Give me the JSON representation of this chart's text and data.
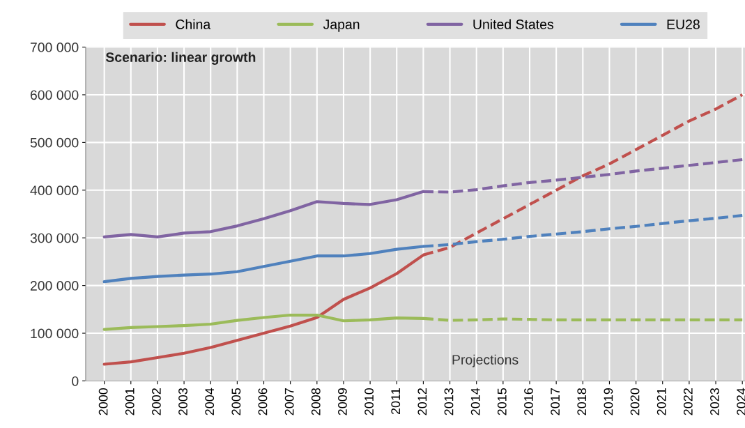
{
  "chart_data": {
    "type": "line",
    "categories": [
      "2000",
      "2001",
      "2002",
      "2003",
      "2004",
      "2005",
      "2006",
      "2007",
      "2008",
      "2009",
      "2010",
      "2011",
      "2012",
      "2013",
      "2014",
      "2015",
      "2016",
      "2017",
      "2018",
      "2019",
      "2020",
      "2021",
      "2022",
      "2023",
      "2024"
    ],
    "series": [
      {
        "name": "China",
        "color": "#c0504d",
        "line_style": "solid",
        "values": [
          35000,
          40000,
          49000,
          58000,
          70000,
          85000,
          100000,
          115000,
          133000,
          171000,
          195000,
          225000,
          264000,
          null,
          null,
          null,
          null,
          null,
          null,
          null,
          null,
          null,
          null,
          null,
          null
        ]
      },
      {
        "name": "Japan",
        "color": "#9bbb59",
        "line_style": "solid",
        "values": [
          108000,
          112000,
          114000,
          116000,
          119000,
          127000,
          133000,
          138000,
          138000,
          126000,
          128000,
          132000,
          131000,
          null,
          null,
          null,
          null,
          null,
          null,
          null,
          null,
          null,
          null,
          null,
          null
        ]
      },
      {
        "name": "United States",
        "color": "#8064a2",
        "line_style": "solid",
        "values": [
          302000,
          307000,
          302000,
          310000,
          313000,
          325000,
          340000,
          357000,
          376000,
          372000,
          370000,
          380000,
          397000,
          null,
          null,
          null,
          null,
          null,
          null,
          null,
          null,
          null,
          null,
          null,
          null
        ]
      },
      {
        "name": "EU28",
        "color": "#4f81bd",
        "line_style": "solid",
        "values": [
          208000,
          215000,
          219000,
          222000,
          224000,
          229000,
          240000,
          251000,
          262000,
          262000,
          267000,
          276000,
          282000,
          null,
          null,
          null,
          null,
          null,
          null,
          null,
          null,
          null,
          null,
          null,
          null
        ]
      },
      {
        "color": "#c0504d",
        "line_style": "dashed",
        "values": [
          null,
          null,
          null,
          null,
          null,
          null,
          null,
          null,
          null,
          null,
          null,
          null,
          264000,
          280000,
          310000,
          340000,
          370000,
          400000,
          430000,
          455000,
          485000,
          515000,
          545000,
          570000,
          600000
        ]
      },
      {
        "color": "#9bbb59",
        "line_style": "dashed",
        "values": [
          null,
          null,
          null,
          null,
          null,
          null,
          null,
          null,
          null,
          null,
          null,
          null,
          131000,
          127000,
          128000,
          130000,
          129000,
          128000,
          128000,
          128000,
          128000,
          128000,
          128000,
          128000,
          128000
        ]
      },
      {
        "color": "#8064a2",
        "line_style": "dashed",
        "values": [
          null,
          null,
          null,
          null,
          null,
          null,
          null,
          null,
          null,
          null,
          null,
          null,
          397000,
          396000,
          401000,
          409000,
          416000,
          421000,
          427000,
          433000,
          440000,
          446000,
          452000,
          458000,
          464000
        ]
      },
      {
        "color": "#4f81bd",
        "line_style": "dashed",
        "values": [
          null,
          null,
          null,
          null,
          null,
          null,
          null,
          null,
          null,
          null,
          null,
          null,
          282000,
          286000,
          292000,
          297000,
          303000,
          308000,
          313000,
          319000,
          324000,
          330000,
          336000,
          341000,
          347000
        ]
      }
    ],
    "ylim": [
      0,
      700000
    ],
    "yticks": [
      0,
      {
        "value": 100000,
        "label": "100 000"
      },
      {
        "value": 200000,
        "label": "200 000"
      },
      {
        "value": 300000,
        "label": "300 000"
      },
      {
        "value": 400000,
        "label": "400 000"
      },
      {
        "value": 500000,
        "label": "500 000"
      },
      {
        "value": 600000,
        "label": "600 000"
      },
      {
        "value": 700000,
        "label": "700 000"
      }
    ],
    "grid": true,
    "legend": "top",
    "annotations": [
      "Scenario: linear growth",
      "Projections"
    ]
  }
}
